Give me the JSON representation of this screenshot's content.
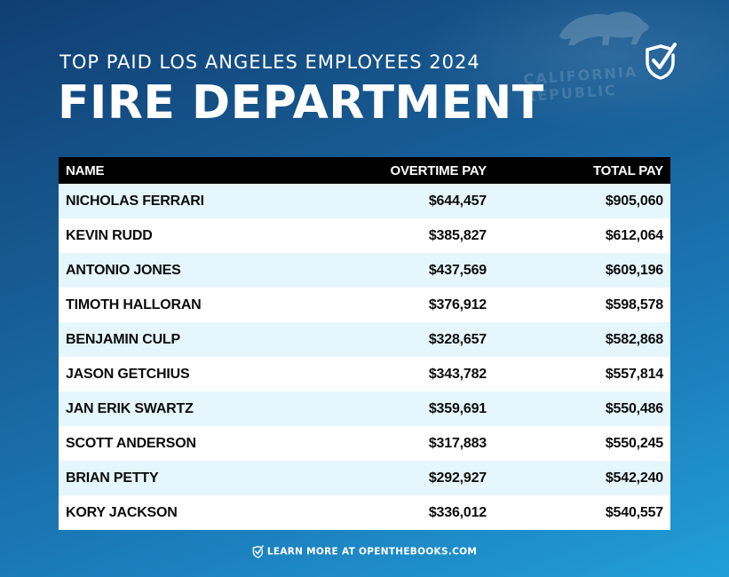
{
  "header": {
    "subtitle": "TOP PAID LOS ANGELES EMPLOYEES 2024",
    "title": "FIRE DEPARTMENT",
    "background_flag_text": "CALIFORNIA REPUBLIC"
  },
  "table": {
    "columns": [
      "NAME",
      "OVERTIME PAY",
      "TOTAL PAY"
    ],
    "rows": [
      {
        "name": "NICHOLAS FERRARI",
        "overtime": "$644,457",
        "total": "$905,060"
      },
      {
        "name": "KEVIN RUDD",
        "overtime": "$385,827",
        "total": "$612,064"
      },
      {
        "name": "ANTONIO JONES",
        "overtime": "$437,569",
        "total": "$609,196"
      },
      {
        "name": "TIMOTH HALLORAN",
        "overtime": "$376,912",
        "total": "$598,578"
      },
      {
        "name": "BENJAMIN CULP",
        "overtime": "$328,657",
        "total": "$582,868"
      },
      {
        "name": "JASON GETCHIUS",
        "overtime": "$343,782",
        "total": "$557,814"
      },
      {
        "name": "JAN ERIK SWARTZ",
        "overtime": "$359,691",
        "total": "$550,486"
      },
      {
        "name": "SCOTT ANDERSON",
        "overtime": "$317,883",
        "total": "$550,245"
      },
      {
        "name": "BRIAN PETTY",
        "overtime": "$292,927",
        "total": "$542,240"
      },
      {
        "name": "KORY JACKSON",
        "overtime": "$336,012",
        "total": "$540,557"
      }
    ]
  },
  "footer": {
    "text": "LEARN MORE AT OPENTHEBOOKS.COM",
    "icon": "checkmark-shield-icon"
  },
  "colors": {
    "header_row": "#000000",
    "row_alt": "#e6f6fd",
    "row": "#ffffff",
    "background_top": "#103f72",
    "background_bottom": "#219fd8"
  }
}
